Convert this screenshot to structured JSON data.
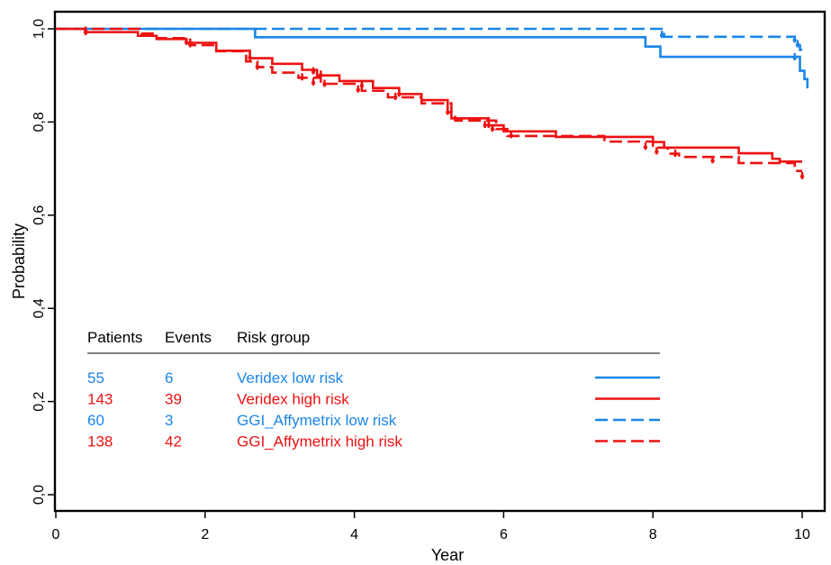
{
  "chart_data": {
    "type": "line",
    "title": "",
    "xlabel": "Year",
    "ylabel": "Probability",
    "xlim": [
      0,
      10.1
    ],
    "ylim": [
      -0.05,
      1.05
    ],
    "xticks": [
      "0",
      "2",
      "4",
      "6",
      "8",
      "10"
    ],
    "yticks": [
      "0,0",
      "0,2",
      "0,4",
      "0,6",
      "0,8",
      "1,0"
    ],
    "legend": {
      "headers": [
        "Patients",
        "Events",
        "Risk group"
      ],
      "placement": "lower-left"
    },
    "colors": {
      "low": "#1a86e8",
      "high": "#ee1111"
    },
    "series": [
      {
        "name": "Veridex low risk",
        "patients": "55",
        "events": "6",
        "color": "#1a86e8",
        "dash": "solid",
        "steps": [
          [
            0,
            1.0
          ],
          [
            2.67,
            0.982
          ],
          [
            7.9,
            0.962
          ],
          [
            8.1,
            0.94
          ],
          [
            9.97,
            0.91
          ],
          [
            10.03,
            0.892
          ],
          [
            10.07,
            0.872
          ]
        ],
        "end": 10.07,
        "censors": [
          [
            9.9,
            0.94
          ]
        ]
      },
      {
        "name": "Veridex high risk",
        "patients": "143",
        "events": "39",
        "color": "#ee1111",
        "dash": "solid",
        "steps": [
          [
            0,
            1.0
          ],
          [
            0.4,
            0.993
          ],
          [
            1.1,
            0.985
          ],
          [
            1.35,
            0.978
          ],
          [
            1.75,
            0.97
          ],
          [
            2.15,
            0.953
          ],
          [
            2.6,
            0.937
          ],
          [
            2.9,
            0.925
          ],
          [
            3.3,
            0.912
          ],
          [
            3.5,
            0.9
          ],
          [
            3.8,
            0.888
          ],
          [
            4.25,
            0.873
          ],
          [
            4.6,
            0.86
          ],
          [
            4.9,
            0.847
          ],
          [
            5.25,
            0.821
          ],
          [
            5.3,
            0.808
          ],
          [
            5.8,
            0.793
          ],
          [
            6.0,
            0.78
          ],
          [
            6.7,
            0.768
          ],
          [
            8.0,
            0.757
          ],
          [
            8.15,
            0.745
          ],
          [
            9.15,
            0.733
          ],
          [
            9.6,
            0.721
          ],
          [
            9.7,
            0.715
          ]
        ],
        "end": 10.0,
        "censors": [
          [
            0.4,
            0.997
          ],
          [
            1.75,
            0.973
          ],
          [
            2.6,
            0.94
          ],
          [
            3.45,
            0.91
          ],
          [
            3.55,
            0.903
          ],
          [
            4.1,
            0.88
          ],
          [
            4.6,
            0.862
          ],
          [
            5.25,
            0.823
          ],
          [
            5.75,
            0.795
          ],
          [
            5.8,
            0.795
          ]
        ]
      },
      {
        "name": "GGI_Affymetrix low risk",
        "patients": "60",
        "events": "3",
        "color": "#1a86e8",
        "dash": "dashed",
        "steps": [
          [
            0,
            1.0
          ],
          [
            8.15,
            0.983
          ],
          [
            9.9,
            0.965
          ],
          [
            9.97,
            0.955
          ]
        ],
        "end": 10.0,
        "censors": [
          [
            8.12,
            0.988
          ],
          [
            9.9,
            0.978
          ],
          [
            9.94,
            0.968
          ]
        ]
      },
      {
        "name": "GGI_Affymetrix high risk",
        "patients": "138",
        "events": "42",
        "color": "#ee1111",
        "dash": "dashed",
        "steps": [
          [
            0,
            1.0
          ],
          [
            1.15,
            0.99
          ],
          [
            1.35,
            0.98
          ],
          [
            1.8,
            0.965
          ],
          [
            2.15,
            0.952
          ],
          [
            2.55,
            0.93
          ],
          [
            2.7,
            0.918
          ],
          [
            2.9,
            0.906
          ],
          [
            3.25,
            0.895
          ],
          [
            3.55,
            0.882
          ],
          [
            4.1,
            0.867
          ],
          [
            4.45,
            0.853
          ],
          [
            4.9,
            0.84
          ],
          [
            5.3,
            0.815
          ],
          [
            5.35,
            0.803
          ],
          [
            5.9,
            0.785
          ],
          [
            6.05,
            0.77
          ],
          [
            7.35,
            0.758
          ],
          [
            8.0,
            0.745
          ],
          [
            8.2,
            0.732
          ],
          [
            8.35,
            0.725
          ],
          [
            9.15,
            0.712
          ],
          [
            9.9,
            0.695
          ]
        ],
        "end": 10.0,
        "censors": [
          [
            0.4,
            0.994
          ],
          [
            1.8,
            0.968
          ],
          [
            2.7,
            0.92
          ],
          [
            3.3,
            0.897
          ],
          [
            3.45,
            0.886
          ],
          [
            3.6,
            0.883
          ],
          [
            4.05,
            0.871
          ],
          [
            4.55,
            0.855
          ],
          [
            5.85,
            0.787
          ],
          [
            6.1,
            0.773
          ],
          [
            7.9,
            0.748
          ],
          [
            8.05,
            0.738
          ],
          [
            8.3,
            0.733
          ],
          [
            8.8,
            0.719
          ],
          [
            10.0,
            0.685
          ]
        ]
      }
    ]
  }
}
